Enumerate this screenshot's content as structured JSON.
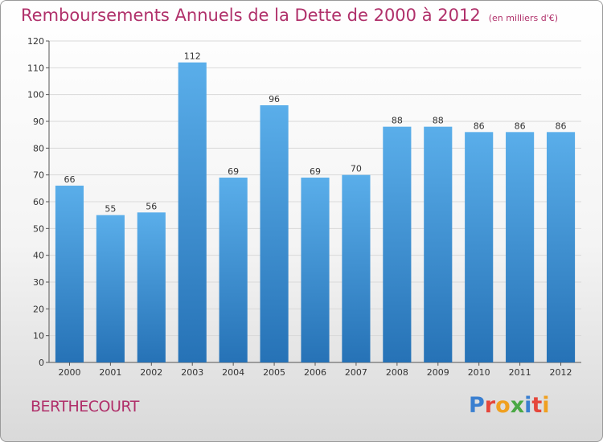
{
  "header": {
    "title": "Remboursements Annuels de la Dette de 2000 à 2012",
    "subtitle": "(en milliers d'€)"
  },
  "footer": {
    "commune": "BERTHECOURT",
    "logo": "Proxiti",
    "logo_colors": [
      "#3a7fd0",
      "#e5463b",
      "#f0a020",
      "#4aa844",
      "#3a7fd0",
      "#e5463b",
      "#f0a020"
    ]
  },
  "colors": {
    "bar_top": "#5aaeea",
    "bar_bottom": "#2672b6",
    "grid": "#d9d9d9",
    "text": "#333333",
    "title": "#b0306a"
  },
  "chart_data": {
    "type": "bar",
    "title": "Remboursements Annuels de la Dette de 2000 à 2012",
    "subtitle": "(en milliers d'€)",
    "xlabel": "",
    "ylabel": "",
    "categories": [
      "2000",
      "2001",
      "2002",
      "2003",
      "2004",
      "2005",
      "2006",
      "2007",
      "2008",
      "2009",
      "2010",
      "2011",
      "2012"
    ],
    "values": [
      66,
      55,
      56,
      112,
      69,
      96,
      69,
      70,
      88,
      88,
      86,
      86,
      86
    ],
    "ylim": [
      0,
      120
    ],
    "yticks": [
      0,
      10,
      20,
      30,
      40,
      50,
      60,
      70,
      80,
      90,
      100,
      110,
      120
    ],
    "grid": true,
    "data_labels": true
  }
}
